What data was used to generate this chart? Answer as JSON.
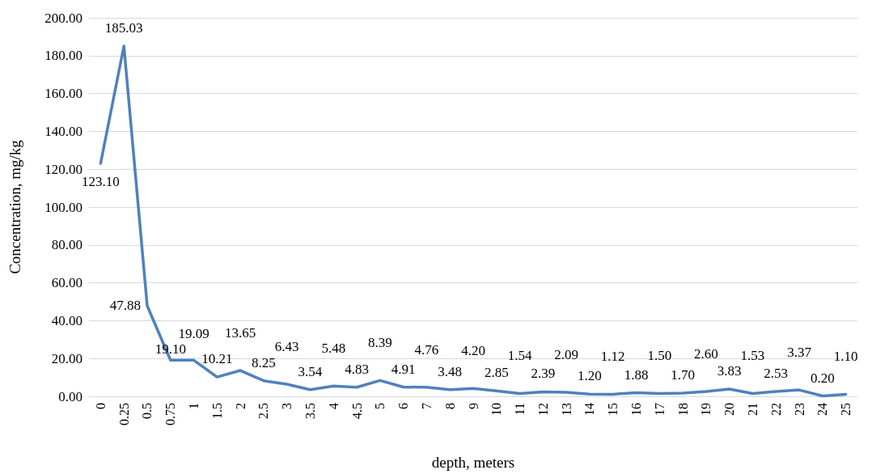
{
  "chart_data": {
    "type": "line",
    "xlabel": "depth, meters",
    "ylabel": "Concentration, mg/kg",
    "categories": [
      "0",
      "0.25",
      "0.5",
      "0.75",
      "1",
      "1.5",
      "2",
      "2.5",
      "3",
      "3.5",
      "4",
      "4.5",
      "5",
      "6",
      "7",
      "8",
      "9",
      "10",
      "11",
      "12",
      "13",
      "14",
      "15",
      "16",
      "17",
      "18",
      "19",
      "20",
      "21",
      "22",
      "23",
      "24",
      "25"
    ],
    "series": [
      {
        "color": "#4f81bd",
        "values": [
          123.1,
          185.03,
          47.88,
          19.1,
          19.09,
          10.21,
          13.65,
          8.25,
          6.43,
          3.54,
          5.48,
          4.83,
          8.39,
          4.91,
          4.76,
          3.48,
          4.2,
          2.85,
          1.54,
          2.39,
          2.09,
          1.2,
          1.12,
          1.88,
          1.5,
          1.7,
          2.6,
          3.83,
          1.53,
          2.53,
          3.37,
          0.2,
          1.1
        ],
        "value_labels": [
          "123.10",
          "185.03",
          "47.88",
          "19.10",
          "19.09",
          "10.21",
          "13.65",
          "8.25",
          "6.43",
          "3.54",
          "5.48",
          "4.83",
          "8.39",
          "4.91",
          "4.76",
          "3.48",
          "4.20",
          "2.85",
          "1.54",
          "2.39",
          "2.09",
          "1.20",
          "1.12",
          "1.88",
          "1.50",
          "1.70",
          "2.60",
          "3.83",
          "1.53",
          "2.53",
          "3.37",
          "0.20",
          "1.10"
        ]
      }
    ],
    "ylim": [
      0,
      200
    ],
    "yticks": [
      {
        "value": 0,
        "label": "0.00"
      },
      {
        "value": 20,
        "label": "20.00"
      },
      {
        "value": 40,
        "label": "40.00"
      },
      {
        "value": 60,
        "label": "60.00"
      },
      {
        "value": 80,
        "label": "80.00"
      },
      {
        "value": 100,
        "label": "100.00"
      },
      {
        "value": 120,
        "label": "120.00"
      },
      {
        "value": 140,
        "label": "140.00"
      },
      {
        "value": 160,
        "label": "160.00"
      },
      {
        "value": 180,
        "label": "180.00"
      },
      {
        "value": 200,
        "label": "200.00"
      }
    ],
    "grid": "y",
    "marker": "none",
    "line_style": "solid"
  }
}
